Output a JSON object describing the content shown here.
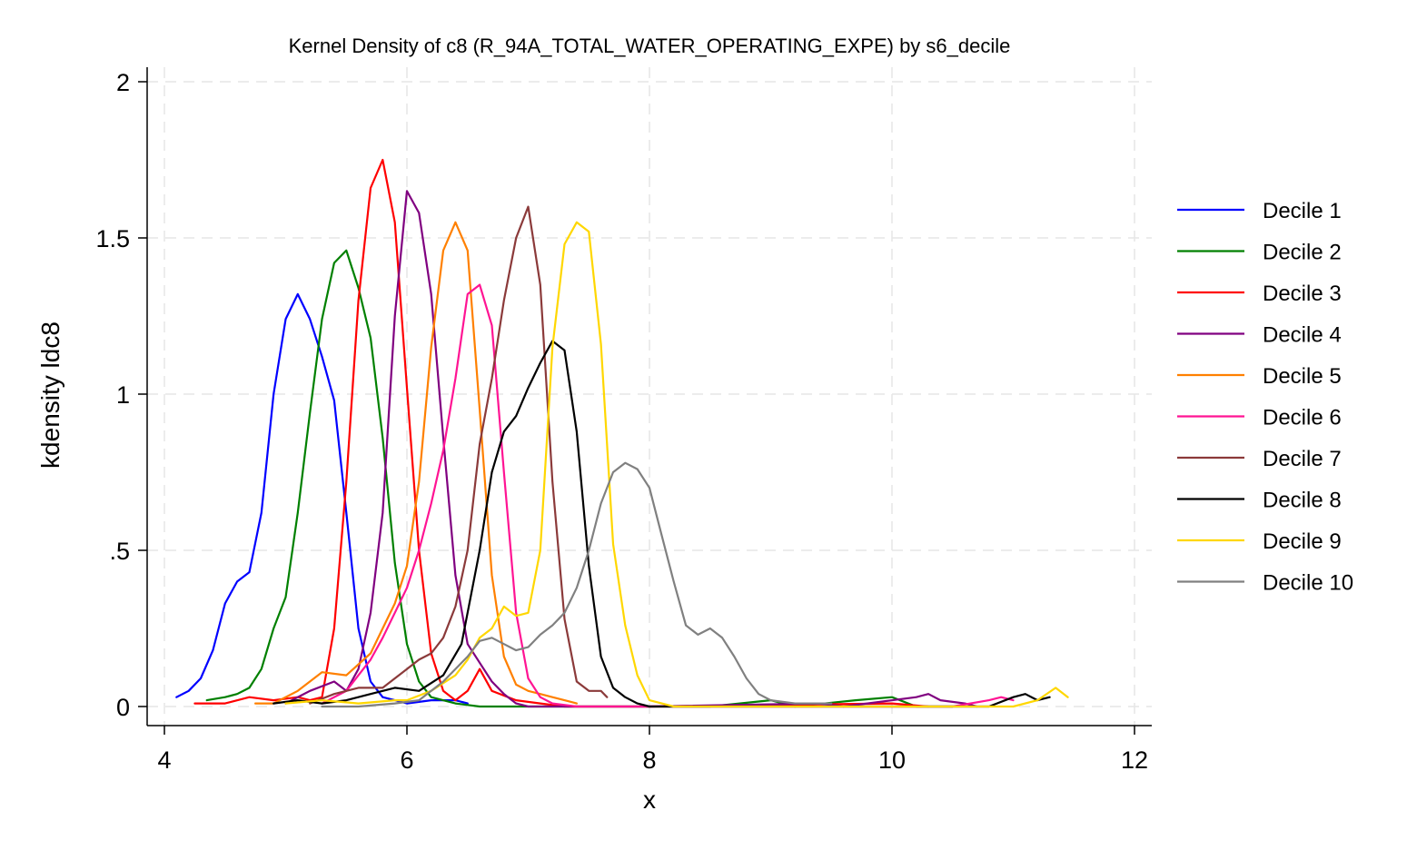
{
  "chart_data": {
    "type": "line",
    "title": "Kernel Density of c8 (R_94A_TOTAL_WATER_OPERATING_EXPE) by s6_decile",
    "xlabel": "x",
    "ylabel": "kdensity ldc8",
    "xlim": [
      4,
      12
    ],
    "ylim": [
      0,
      2
    ],
    "xticks": [
      4,
      6,
      8,
      10,
      12
    ],
    "xtick_labels": [
      "4",
      "6",
      "8",
      "10",
      "12"
    ],
    "yticks": [
      0,
      0.5,
      1,
      1.5,
      2
    ],
    "ytick_labels": [
      "0",
      ".5",
      "1",
      "1.5",
      "2"
    ],
    "grid": true,
    "legend_position": "right",
    "series": [
      {
        "name": "Decile 1",
        "color": "#0000ff",
        "points": [
          [
            4.1,
            0.03
          ],
          [
            4.2,
            0.05
          ],
          [
            4.3,
            0.09
          ],
          [
            4.4,
            0.18
          ],
          [
            4.5,
            0.33
          ],
          [
            4.6,
            0.4
          ],
          [
            4.7,
            0.43
          ],
          [
            4.8,
            0.62
          ],
          [
            4.9,
            1.0
          ],
          [
            5.0,
            1.24
          ],
          [
            5.1,
            1.32
          ],
          [
            5.2,
            1.24
          ],
          [
            5.3,
            1.12
          ],
          [
            5.4,
            0.98
          ],
          [
            5.5,
            0.62
          ],
          [
            5.6,
            0.25
          ],
          [
            5.7,
            0.08
          ],
          [
            5.8,
            0.03
          ],
          [
            5.9,
            0.02
          ],
          [
            6.0,
            0.01
          ],
          [
            6.2,
            0.02
          ],
          [
            6.4,
            0.02
          ],
          [
            6.5,
            0.01
          ]
        ]
      },
      {
        "name": "Decile 2",
        "color": "#008000",
        "points": [
          [
            4.35,
            0.02
          ],
          [
            4.5,
            0.03
          ],
          [
            4.6,
            0.04
          ],
          [
            4.7,
            0.06
          ],
          [
            4.8,
            0.12
          ],
          [
            4.9,
            0.25
          ],
          [
            5.0,
            0.35
          ],
          [
            5.1,
            0.62
          ],
          [
            5.2,
            0.94
          ],
          [
            5.3,
            1.24
          ],
          [
            5.4,
            1.42
          ],
          [
            5.5,
            1.46
          ],
          [
            5.6,
            1.34
          ],
          [
            5.7,
            1.18
          ],
          [
            5.8,
            0.86
          ],
          [
            5.9,
            0.46
          ],
          [
            6.0,
            0.2
          ],
          [
            6.1,
            0.08
          ],
          [
            6.2,
            0.03
          ],
          [
            6.4,
            0.01
          ],
          [
            6.6,
            0.0
          ],
          [
            7.5,
            0.0
          ],
          [
            8.5,
            0.0
          ],
          [
            9.0,
            0.02
          ],
          [
            9.2,
            0.0
          ],
          [
            9.7,
            0.02
          ],
          [
            10.0,
            0.03
          ],
          [
            10.2,
            0.0
          ],
          [
            10.5,
            0.0
          ]
        ]
      },
      {
        "name": "Decile 3",
        "color": "#ff0000",
        "points": [
          [
            4.25,
            0.01
          ],
          [
            4.5,
            0.01
          ],
          [
            4.7,
            0.03
          ],
          [
            4.9,
            0.02
          ],
          [
            5.1,
            0.03
          ],
          [
            5.2,
            0.02
          ],
          [
            5.3,
            0.03
          ],
          [
            5.4,
            0.25
          ],
          [
            5.5,
            0.72
          ],
          [
            5.6,
            1.3
          ],
          [
            5.7,
            1.66
          ],
          [
            5.8,
            1.75
          ],
          [
            5.9,
            1.55
          ],
          [
            6.0,
            1.02
          ],
          [
            6.1,
            0.5
          ],
          [
            6.2,
            0.17
          ],
          [
            6.3,
            0.05
          ],
          [
            6.4,
            0.02
          ],
          [
            6.5,
            0.05
          ],
          [
            6.6,
            0.12
          ],
          [
            6.7,
            0.05
          ],
          [
            6.9,
            0.02
          ],
          [
            7.1,
            0.01
          ],
          [
            7.3,
            0.0
          ],
          [
            8.0,
            0.0
          ],
          [
            10.0,
            0.01
          ],
          [
            10.3,
            0.0
          ]
        ]
      },
      {
        "name": "Decile 4",
        "color": "#800080",
        "points": [
          [
            5.0,
            0.01
          ],
          [
            5.2,
            0.05
          ],
          [
            5.4,
            0.08
          ],
          [
            5.5,
            0.05
          ],
          [
            5.6,
            0.12
          ],
          [
            5.7,
            0.3
          ],
          [
            5.8,
            0.62
          ],
          [
            5.9,
            1.25
          ],
          [
            6.0,
            1.65
          ],
          [
            6.1,
            1.58
          ],
          [
            6.2,
            1.32
          ],
          [
            6.3,
            0.86
          ],
          [
            6.4,
            0.42
          ],
          [
            6.5,
            0.2
          ],
          [
            6.6,
            0.14
          ],
          [
            6.7,
            0.08
          ],
          [
            6.8,
            0.04
          ],
          [
            6.9,
            0.01
          ],
          [
            7.0,
            0.0
          ],
          [
            8.0,
            0.0
          ],
          [
            9.4,
            0.01
          ],
          [
            9.6,
            0.0
          ],
          [
            10.2,
            0.03
          ],
          [
            10.3,
            0.04
          ],
          [
            10.4,
            0.02
          ],
          [
            10.6,
            0.01
          ],
          [
            10.7,
            0.0
          ]
        ]
      },
      {
        "name": "Decile 5",
        "color": "#ff8000",
        "points": [
          [
            4.75,
            0.01
          ],
          [
            4.9,
            0.01
          ],
          [
            5.1,
            0.05
          ],
          [
            5.3,
            0.11
          ],
          [
            5.5,
            0.1
          ],
          [
            5.7,
            0.17
          ],
          [
            5.8,
            0.25
          ],
          [
            5.9,
            0.33
          ],
          [
            6.0,
            0.45
          ],
          [
            6.1,
            0.72
          ],
          [
            6.2,
            1.15
          ],
          [
            6.3,
            1.46
          ],
          [
            6.4,
            1.55
          ],
          [
            6.5,
            1.46
          ],
          [
            6.6,
            0.95
          ],
          [
            6.7,
            0.42
          ],
          [
            6.8,
            0.16
          ],
          [
            6.9,
            0.07
          ],
          [
            7.0,
            0.05
          ],
          [
            7.1,
            0.04
          ],
          [
            7.2,
            0.03
          ],
          [
            7.3,
            0.02
          ],
          [
            7.4,
            0.01
          ]
        ]
      },
      {
        "name": "Decile 6",
        "color": "#ff1493",
        "points": [
          [
            5.3,
            0.01
          ],
          [
            5.5,
            0.05
          ],
          [
            5.6,
            0.1
          ],
          [
            5.7,
            0.15
          ],
          [
            5.8,
            0.22
          ],
          [
            5.9,
            0.3
          ],
          [
            6.0,
            0.38
          ],
          [
            6.1,
            0.5
          ],
          [
            6.2,
            0.65
          ],
          [
            6.3,
            0.82
          ],
          [
            6.4,
            1.05
          ],
          [
            6.5,
            1.32
          ],
          [
            6.6,
            1.35
          ],
          [
            6.7,
            1.22
          ],
          [
            6.8,
            0.75
          ],
          [
            6.9,
            0.3
          ],
          [
            7.0,
            0.09
          ],
          [
            7.1,
            0.03
          ],
          [
            7.2,
            0.01
          ],
          [
            7.4,
            0.0
          ],
          [
            8.0,
            0.0
          ],
          [
            10.5,
            0.0
          ],
          [
            10.8,
            0.02
          ],
          [
            10.9,
            0.03
          ],
          [
            11.0,
            0.02
          ]
        ]
      },
      {
        "name": "Decile 7",
        "color": "#8b3a3a",
        "points": [
          [
            5.2,
            0.01
          ],
          [
            5.4,
            0.04
          ],
          [
            5.6,
            0.06
          ],
          [
            5.8,
            0.06
          ],
          [
            6.0,
            0.12
          ],
          [
            6.1,
            0.15
          ],
          [
            6.2,
            0.17
          ],
          [
            6.3,
            0.22
          ],
          [
            6.4,
            0.32
          ],
          [
            6.5,
            0.5
          ],
          [
            6.6,
            0.84
          ],
          [
            6.7,
            1.05
          ],
          [
            6.8,
            1.3
          ],
          [
            6.9,
            1.5
          ],
          [
            7.0,
            1.6
          ],
          [
            7.1,
            1.35
          ],
          [
            7.2,
            0.72
          ],
          [
            7.3,
            0.28
          ],
          [
            7.4,
            0.08
          ],
          [
            7.5,
            0.05
          ],
          [
            7.6,
            0.05
          ],
          [
            7.65,
            0.03
          ]
        ]
      },
      {
        "name": "Decile 8",
        "color": "#000000",
        "points": [
          [
            4.9,
            0.01
          ],
          [
            5.1,
            0.02
          ],
          [
            5.3,
            0.01
          ],
          [
            5.5,
            0.02
          ],
          [
            5.7,
            0.04
          ],
          [
            5.9,
            0.06
          ],
          [
            6.1,
            0.05
          ],
          [
            6.3,
            0.1
          ],
          [
            6.45,
            0.2
          ],
          [
            6.6,
            0.5
          ],
          [
            6.7,
            0.75
          ],
          [
            6.8,
            0.88
          ],
          [
            6.9,
            0.93
          ],
          [
            7.0,
            1.02
          ],
          [
            7.1,
            1.1
          ],
          [
            7.2,
            1.17
          ],
          [
            7.3,
            1.14
          ],
          [
            7.4,
            0.88
          ],
          [
            7.5,
            0.45
          ],
          [
            7.6,
            0.16
          ],
          [
            7.7,
            0.06
          ],
          [
            7.8,
            0.03
          ],
          [
            7.9,
            0.01
          ],
          [
            8.0,
            0.0
          ],
          [
            9.0,
            0.0
          ],
          [
            10.5,
            0.0
          ],
          [
            10.8,
            0.0
          ],
          [
            11.0,
            0.03
          ],
          [
            11.1,
            0.04
          ],
          [
            11.2,
            0.02
          ],
          [
            11.3,
            0.03
          ]
        ]
      },
      {
        "name": "Decile 9",
        "color": "#ffd700",
        "points": [
          [
            5.0,
            0.01
          ],
          [
            5.3,
            0.02
          ],
          [
            5.6,
            0.01
          ],
          [
            5.9,
            0.02
          ],
          [
            6.0,
            0.02
          ],
          [
            6.2,
            0.05
          ],
          [
            6.4,
            0.1
          ],
          [
            6.5,
            0.15
          ],
          [
            6.6,
            0.22
          ],
          [
            6.7,
            0.25
          ],
          [
            6.8,
            0.32
          ],
          [
            6.9,
            0.29
          ],
          [
            7.0,
            0.3
          ],
          [
            7.1,
            0.5
          ],
          [
            7.2,
            1.15
          ],
          [
            7.3,
            1.48
          ],
          [
            7.4,
            1.55
          ],
          [
            7.5,
            1.52
          ],
          [
            7.6,
            1.16
          ],
          [
            7.7,
            0.52
          ],
          [
            7.8,
            0.26
          ],
          [
            7.9,
            0.1
          ],
          [
            8.0,
            0.02
          ],
          [
            8.2,
            0.0
          ],
          [
            9.0,
            0.0
          ],
          [
            10.0,
            0.0
          ],
          [
            11.0,
            0.0
          ],
          [
            11.2,
            0.02
          ],
          [
            11.35,
            0.06
          ],
          [
            11.45,
            0.03
          ]
        ]
      },
      {
        "name": "Decile 10",
        "color": "#808080",
        "points": [
          [
            5.3,
            0.0
          ],
          [
            5.6,
            0.0
          ],
          [
            5.9,
            0.01
          ],
          [
            6.1,
            0.02
          ],
          [
            6.3,
            0.08
          ],
          [
            6.5,
            0.16
          ],
          [
            6.6,
            0.21
          ],
          [
            6.7,
            0.22
          ],
          [
            6.8,
            0.2
          ],
          [
            6.9,
            0.18
          ],
          [
            7.0,
            0.19
          ],
          [
            7.1,
            0.23
          ],
          [
            7.2,
            0.26
          ],
          [
            7.3,
            0.3
          ],
          [
            7.4,
            0.38
          ],
          [
            7.5,
            0.5
          ],
          [
            7.6,
            0.65
          ],
          [
            7.7,
            0.75
          ],
          [
            7.8,
            0.78
          ],
          [
            7.9,
            0.76
          ],
          [
            8.0,
            0.7
          ],
          [
            8.1,
            0.55
          ],
          [
            8.2,
            0.4
          ],
          [
            8.3,
            0.26
          ],
          [
            8.4,
            0.23
          ],
          [
            8.5,
            0.25
          ],
          [
            8.6,
            0.22
          ],
          [
            8.7,
            0.16
          ],
          [
            8.8,
            0.09
          ],
          [
            8.9,
            0.04
          ],
          [
            9.0,
            0.02
          ],
          [
            9.2,
            0.01
          ],
          [
            9.5,
            0.01
          ]
        ]
      }
    ]
  }
}
